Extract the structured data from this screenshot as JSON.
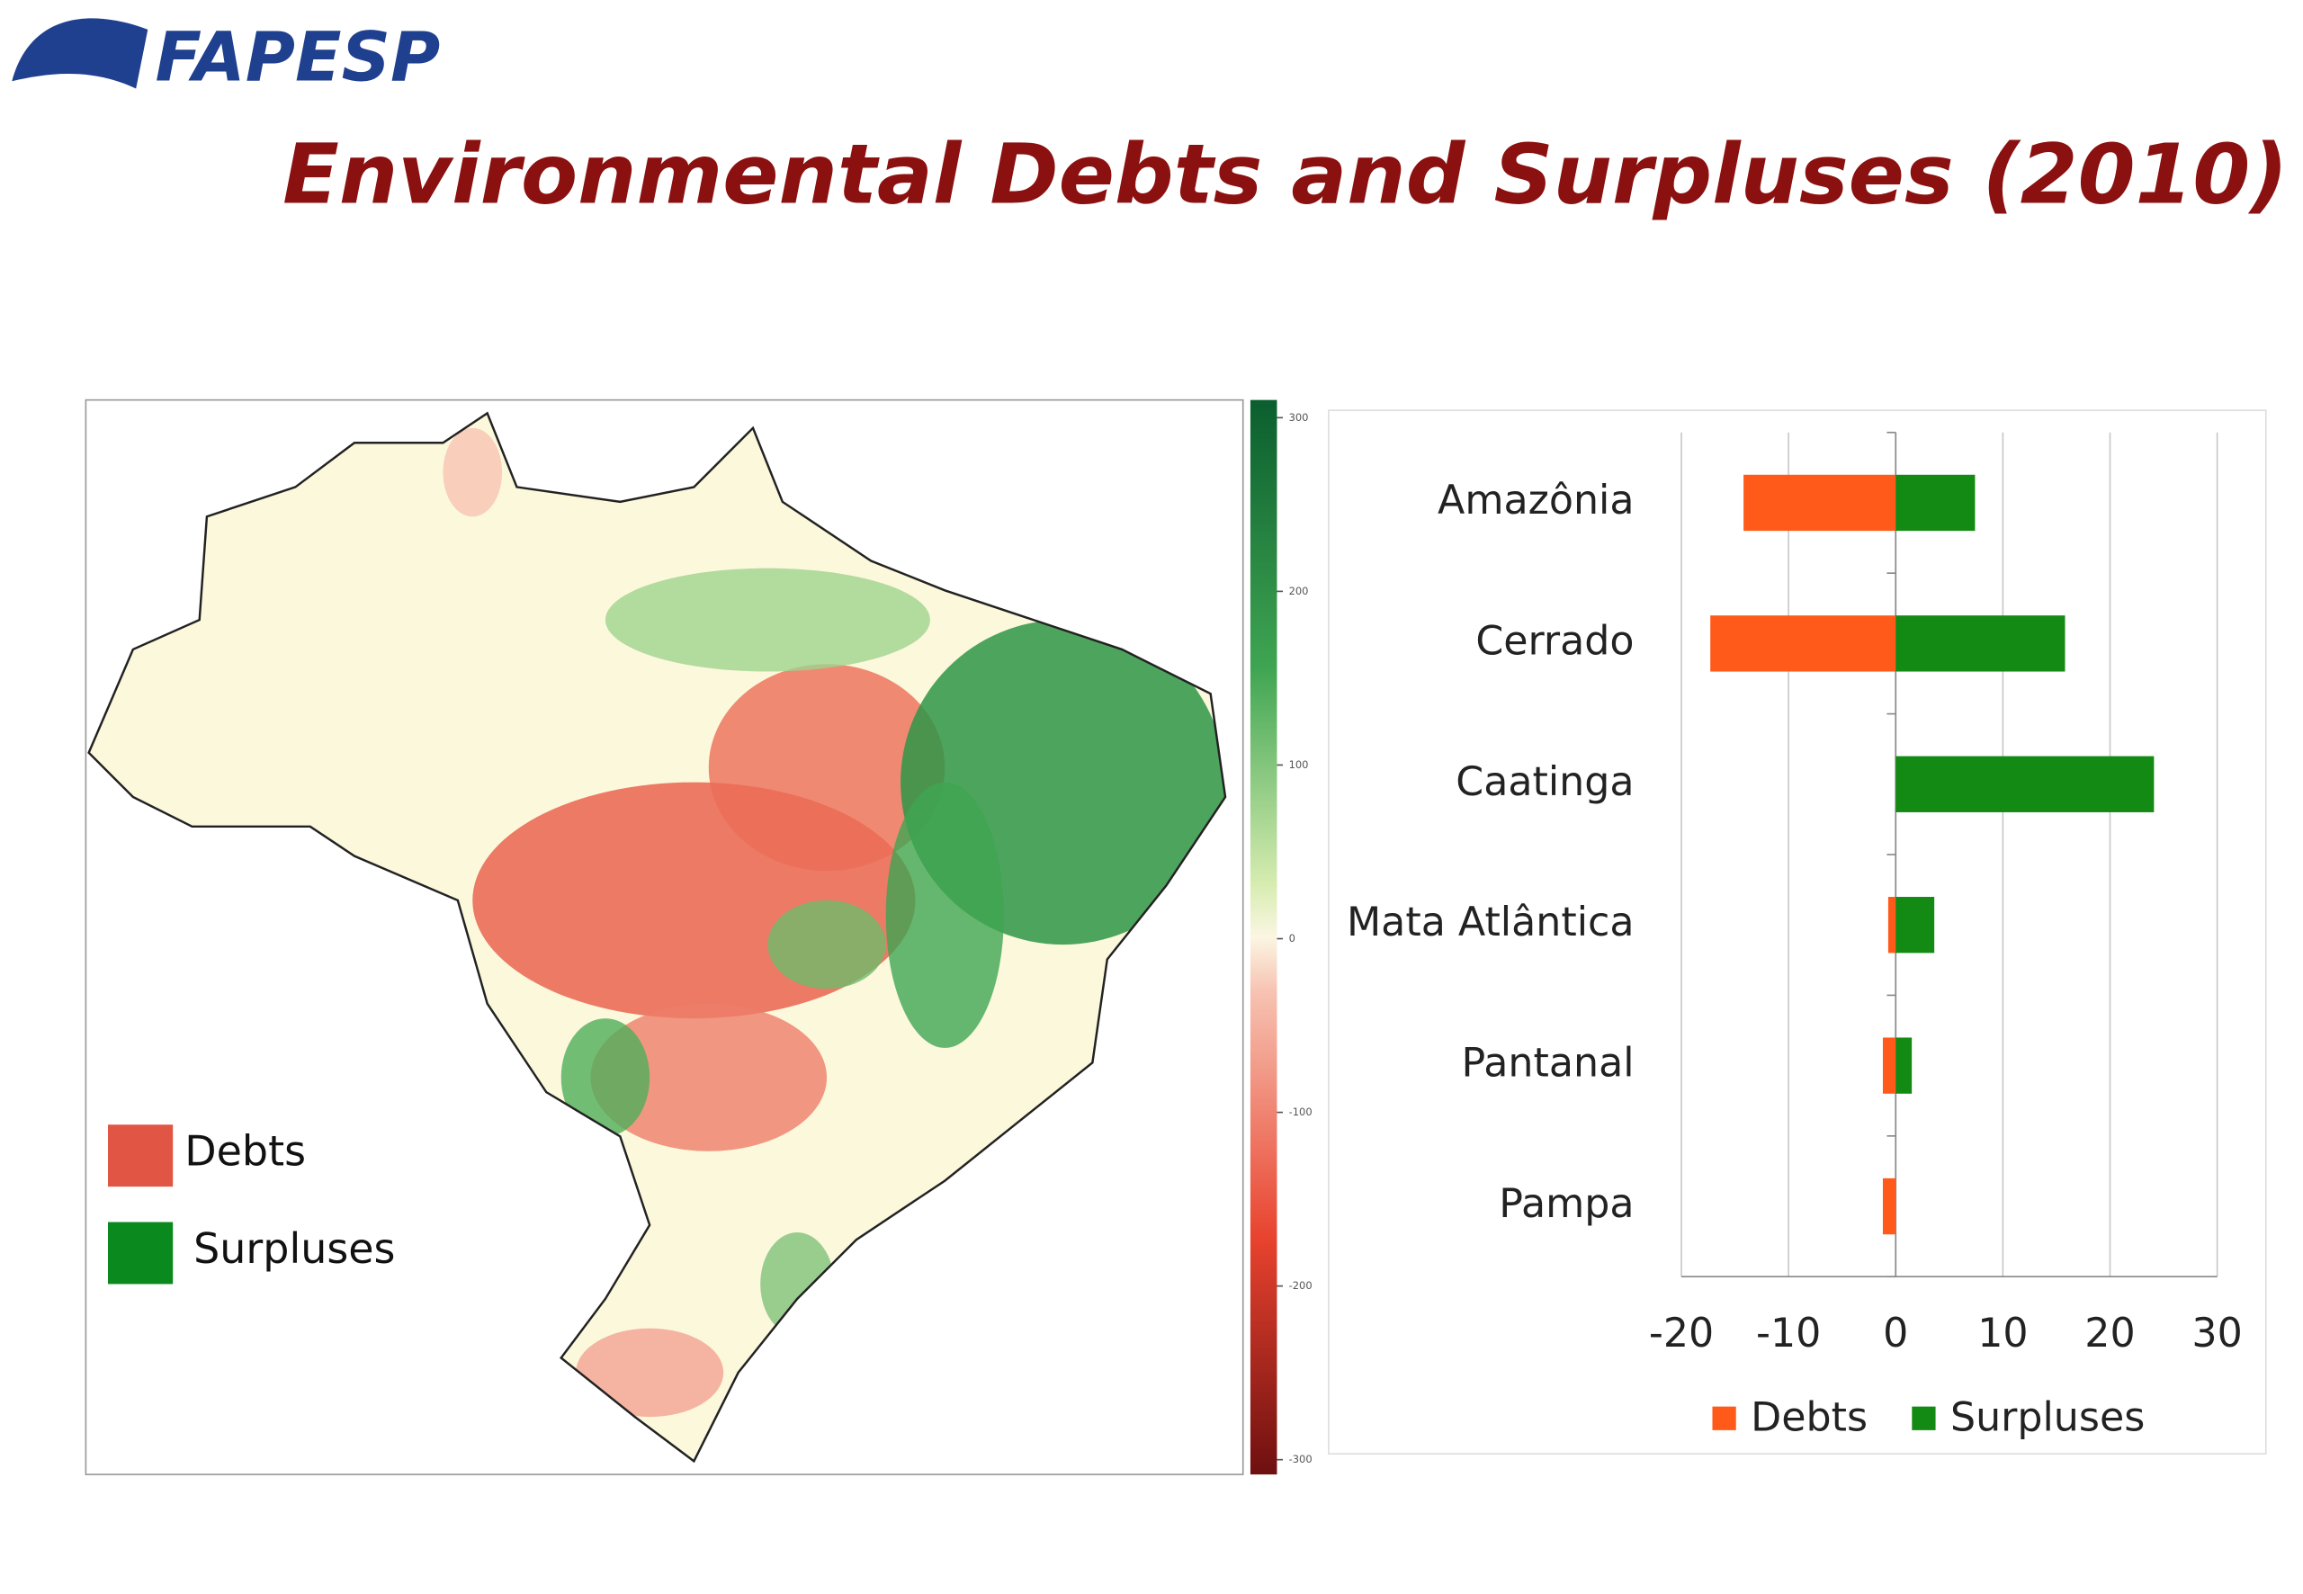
{
  "header": {
    "logo": "FAPESP",
    "title": "Environmental Debts and Surpluses (2010)"
  },
  "map": {
    "legend": [
      {
        "label": "Debts",
        "color": "#e05543"
      },
      {
        "label": "Surpluses",
        "color": "#0a8a1e"
      }
    ],
    "colorbar": {
      "lim": [
        -300,
        300
      ],
      "ticks": [
        300,
        200,
        100,
        0,
        -100,
        -200,
        -300
      ]
    }
  },
  "chart_data": {
    "type": "hbar",
    "categories": [
      "Amazônia",
      "Cerrado",
      "Caatinga",
      "Mata Atlântica",
      "Pantanal",
      "Pampa"
    ],
    "series": [
      {
        "name": "Debts",
        "color": "#ff5a1a",
        "values": [
          -14.2,
          -17.3,
          0,
          -0.7,
          -1.2,
          -1.2
        ]
      },
      {
        "name": "Surpluses",
        "color": "#138a13",
        "values": [
          7.4,
          15.8,
          24.1,
          3.6,
          1.5,
          0
        ]
      }
    ],
    "xlim": [
      -20,
      30
    ],
    "xticks": [
      -20,
      -10,
      0,
      10,
      20,
      30
    ],
    "grid": true,
    "legend": "bottom"
  }
}
